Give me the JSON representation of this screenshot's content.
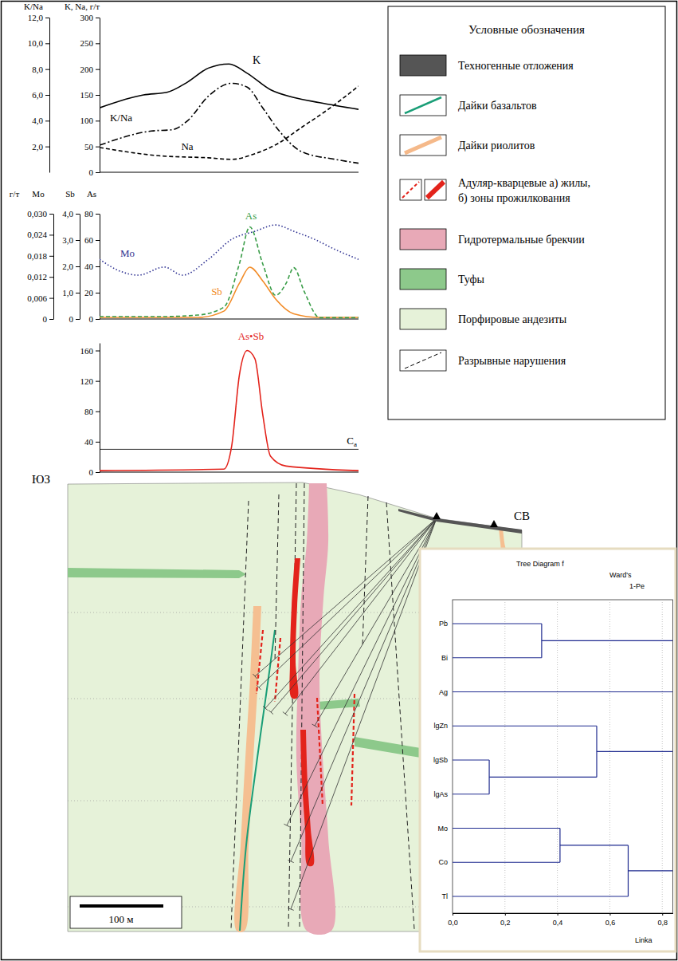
{
  "chart_data": [
    {
      "type": "line",
      "ylabel": "K, Na, г/т",
      "y2label": "K/Na",
      "xlim": [
        0,
        100
      ],
      "tick_labels": "y",
      "ylim": [
        0,
        300
      ],
      "yticks": [
        0,
        50,
        100,
        150,
        200,
        250,
        300
      ],
      "y2lim": [
        0,
        12
      ],
      "y2ticks": [
        {
          "value": 2,
          "label": "2,0"
        },
        {
          "value": 4,
          "label": "4,0"
        },
        {
          "value": 6,
          "label": "6,0"
        },
        {
          "value": 8,
          "label": "8,0"
        },
        {
          "value": 10,
          "label": "10,0"
        },
        {
          "value": 12,
          "label": "12,0"
        }
      ],
      "series": [
        {
          "name": "K",
          "color": "#000000",
          "line_style": "solid",
          "x": [
            0,
            17,
            26,
            34,
            42,
            50,
            57,
            66,
            75,
            85,
            100
          ],
          "values": [
            125,
            150,
            155,
            175,
            202,
            210,
            192,
            160,
            145,
            135,
            122
          ]
        },
        {
          "name": "K/Na",
          "color": "#000000",
          "line_style": "dashdot",
          "axis": "y2",
          "x": [
            0,
            20,
            28,
            34,
            42,
            51,
            57,
            63,
            69,
            78,
            91,
            100
          ],
          "values": [
            2.1,
            3.2,
            3.3,
            4.0,
            5.9,
            6.9,
            6.6,
            5.0,
            3.3,
            1.6,
            1.0,
            0.7
          ]
        },
        {
          "name": "Na",
          "color": "#000000",
          "line_style": "dashed",
          "x": [
            0,
            23,
            42,
            51,
            60,
            69,
            78,
            88,
            100
          ],
          "values": [
            48,
            32,
            28,
            25,
            36,
            56,
            87,
            121,
            167
          ]
        }
      ]
    },
    {
      "type": "line",
      "unit": "г/т",
      "y3label": "Mo",
      "ylabel": "Sb",
      "y2label": "As",
      "xlim": [
        0,
        100
      ],
      "tick_labels": "y",
      "ylim": [
        0,
        4
      ],
      "yticks": [
        0,
        {
          "value": 1,
          "label": "1,0"
        },
        {
          "value": 2,
          "label": "2,0"
        },
        {
          "value": 3,
          "label": "3,0"
        },
        {
          "value": 4,
          "label": "4,0"
        }
      ],
      "y2lim": [
        0,
        80
      ],
      "y2ticks": [
        0,
        20,
        40,
        60,
        80
      ],
      "y3lim": [
        0,
        0.03
      ],
      "y3ticks": [
        0,
        {
          "value": 0.006,
          "label": "0,006"
        },
        {
          "value": 0.012,
          "label": "0,012"
        },
        {
          "value": 0.018,
          "label": "0,018"
        },
        {
          "value": 0.024,
          "label": "0,024"
        },
        {
          "value": 0.03,
          "label": "0,030"
        }
      ],
      "series": [
        {
          "name": "Mo",
          "color": "#2e3192",
          "line_style": "dotted",
          "axis": "y3",
          "x": [
            0,
            8,
            15,
            25,
            32,
            42,
            51,
            60,
            68,
            75,
            83,
            91,
            100
          ],
          "values": [
            0.017,
            0.0136,
            0.0125,
            0.0148,
            0.0125,
            0.017,
            0.0227,
            0.025,
            0.0268,
            0.025,
            0.0227,
            0.0198,
            0.017
          ]
        },
        {
          "name": "Sb",
          "color": "#f28c28",
          "line_style": "solid",
          "axis": "y",
          "x": [
            0,
            38,
            48,
            54,
            58,
            63,
            68,
            75,
            85,
            100
          ],
          "values": [
            0.06,
            0.06,
            0.3,
            1.36,
            1.97,
            1.45,
            0.76,
            0.2,
            0.06,
            0.06
          ]
        },
        {
          "name": "As",
          "color": "#3a9d48",
          "line_style": "dashed",
          "axis": "y2",
          "x": [
            0,
            23,
            38,
            48,
            54,
            58,
            63,
            68,
            72,
            75,
            79,
            85,
            100
          ],
          "values": [
            1.8,
            1.8,
            3,
            9,
            42,
            70,
            42,
            18,
            27,
            39,
            21,
            1,
            1
          ]
        }
      ]
    },
    {
      "type": "line",
      "xlim": [
        0,
        100
      ],
      "tick_labels": "y",
      "ylim": [
        0,
        170
      ],
      "yticks": [
        0,
        40,
        80,
        120,
        160
      ],
      "series": [
        {
          "name": "As•Sb",
          "color": "#e3231b",
          "line_style": "solid",
          "x": [
            0,
            48,
            51,
            54,
            57,
            60,
            63,
            66,
            72,
            100
          ],
          "values": [
            2,
            4,
            34,
            128,
            160,
            149,
            76,
            21,
            8,
            2
          ]
        }
      ],
      "reference_lines": [
        {
          "value": 30,
          "label": "Cа"
        }
      ]
    },
    {
      "type": "dendrogram",
      "title": "Tree Diagram f",
      "subtitle": [
        "Ward's",
        "1-Pe"
      ],
      "xlabel": "Linka",
      "leaves": [
        "Pb",
        "Bi",
        "Ag",
        "lgZn",
        "lgSb",
        "lgAs",
        "Mo",
        "Co",
        "Tl"
      ],
      "merges": [
        {
          "leaves": [
            "lgSb",
            "lgAs"
          ],
          "height": 0.14
        },
        {
          "leaves": [
            "Pb",
            "Bi"
          ],
          "height": 0.34
        },
        {
          "leaves": [
            "Mo",
            "Co"
          ],
          "height": 0.41
        },
        {
          "leaves": [
            "lgZn",
            "lgSb",
            "lgAs"
          ],
          "height": 0.55
        },
        {
          "leaves": [
            "Mo",
            "Co",
            "Tl"
          ],
          "height": 0.67
        }
      ],
      "xlim": [
        0,
        0.84
      ],
      "xticks": [
        {
          "value": 0,
          "label": "0,0"
        },
        {
          "value": 0.2,
          "label": "0,2"
        },
        {
          "value": 0.4,
          "label": "0,4"
        },
        {
          "value": 0.6,
          "label": "0,6"
        },
        {
          "value": 0.8,
          "label": "0,8"
        }
      ],
      "grid": true,
      "color": "#1f2b8f"
    }
  ],
  "legend_box": {
    "title": "Условные обозначения",
    "items": [
      [
        "Техногенные отложения"
      ],
      [
        "Дайки базальтов"
      ],
      [
        "Дайки риолитов"
      ],
      [
        "Адуляр-кварцевые а) жилы,",
        "б) зоны прожилкования"
      ],
      [
        "Гидротермальные брекчии"
      ],
      [
        "Туфы"
      ],
      [
        "Порфировые андезиты"
      ],
      [
        "Разрывные нарушения"
      ]
    ]
  },
  "section": {
    "sw_label": "ЮЗ",
    "ne_label": "СВ",
    "scale_bar": "100 м"
  }
}
